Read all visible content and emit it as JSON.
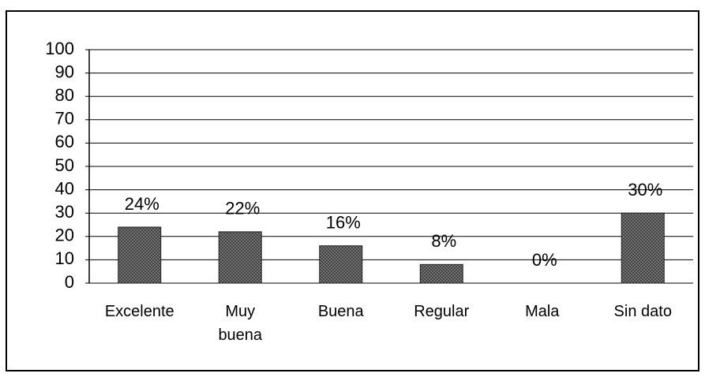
{
  "chart_data": {
    "type": "bar",
    "categories": [
      "Excelente",
      "Muy\nbuena",
      "Buena",
      "Regular",
      "Mala",
      "Sin dato"
    ],
    "values": [
      24,
      22,
      16,
      8,
      0,
      30
    ],
    "value_labels": [
      "24%",
      "22%",
      "16%",
      "8%",
      "0%",
      "30%"
    ],
    "color": "#6e6e6e",
    "ylim": [
      0,
      100
    ],
    "yticks": [
      0,
      10,
      20,
      30,
      40,
      50,
      60,
      70,
      80,
      90,
      100
    ],
    "grid": true
  }
}
